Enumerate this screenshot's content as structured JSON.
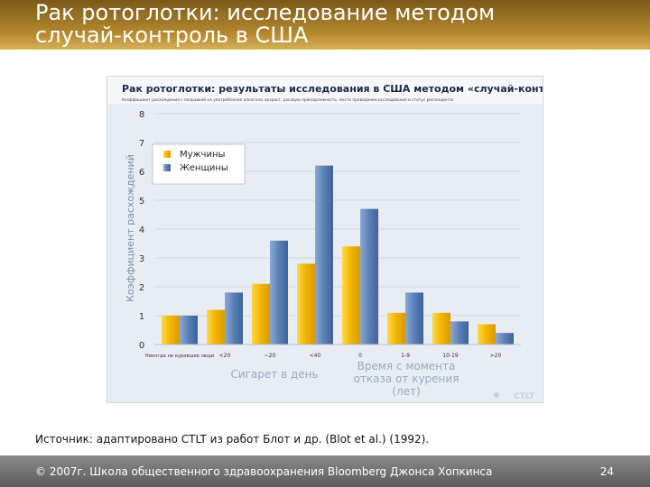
{
  "slide": {
    "title_line1": "Рак ротоглотки: исследование методом",
    "title_line2": "случай-контроль в США",
    "source": "Источник: адаптировано CTLT из работ Блот и др. (Blot et al.) (1992).",
    "footer": "© 2007г. Школа общественного здравоохранения Bloomberg Джонса Хопкинса",
    "page_number": "24",
    "logo_text": "CTLT"
  },
  "chart_data": {
    "type": "bar",
    "title": "Рак ротоглотки: результаты исследования в США методом «случай-контроль»",
    "subtitle": "Коэффициент расхождения с поправкой на употребление алкоголя, возраст, расовую принадлежность, место проведения исследования и статус респондента",
    "ylabel": "Коэффициент расхождений",
    "ylim": [
      0,
      8
    ],
    "yticks": [
      0,
      1,
      2,
      3,
      4,
      5,
      6,
      7,
      8
    ],
    "categories": [
      "Никогда не курившие люди",
      "<20",
      "20",
      "40",
      "0",
      "1-9",
      "10-19",
      "20"
    ],
    "category_labels": [
      "Никогда не курившие люди",
      "<20",
      "~20",
      "<40",
      "0",
      "1-9",
      "10-19",
      ">20"
    ],
    "series": [
      {
        "name": "Мужчины",
        "color": "#f2b400",
        "values": [
          1.0,
          1.2,
          2.1,
          2.8,
          3.4,
          1.1,
          1.1,
          0.7
        ]
      },
      {
        "name": "Женщины",
        "color": "#5a7fb5",
        "values": [
          1.0,
          1.8,
          3.6,
          6.2,
          4.7,
          1.8,
          0.8,
          0.4
        ]
      }
    ],
    "group_labels": [
      "Сигарет в день",
      "Время с момента отказа от курения (лет)"
    ],
    "legend_position": "top-left",
    "grid": true
  }
}
